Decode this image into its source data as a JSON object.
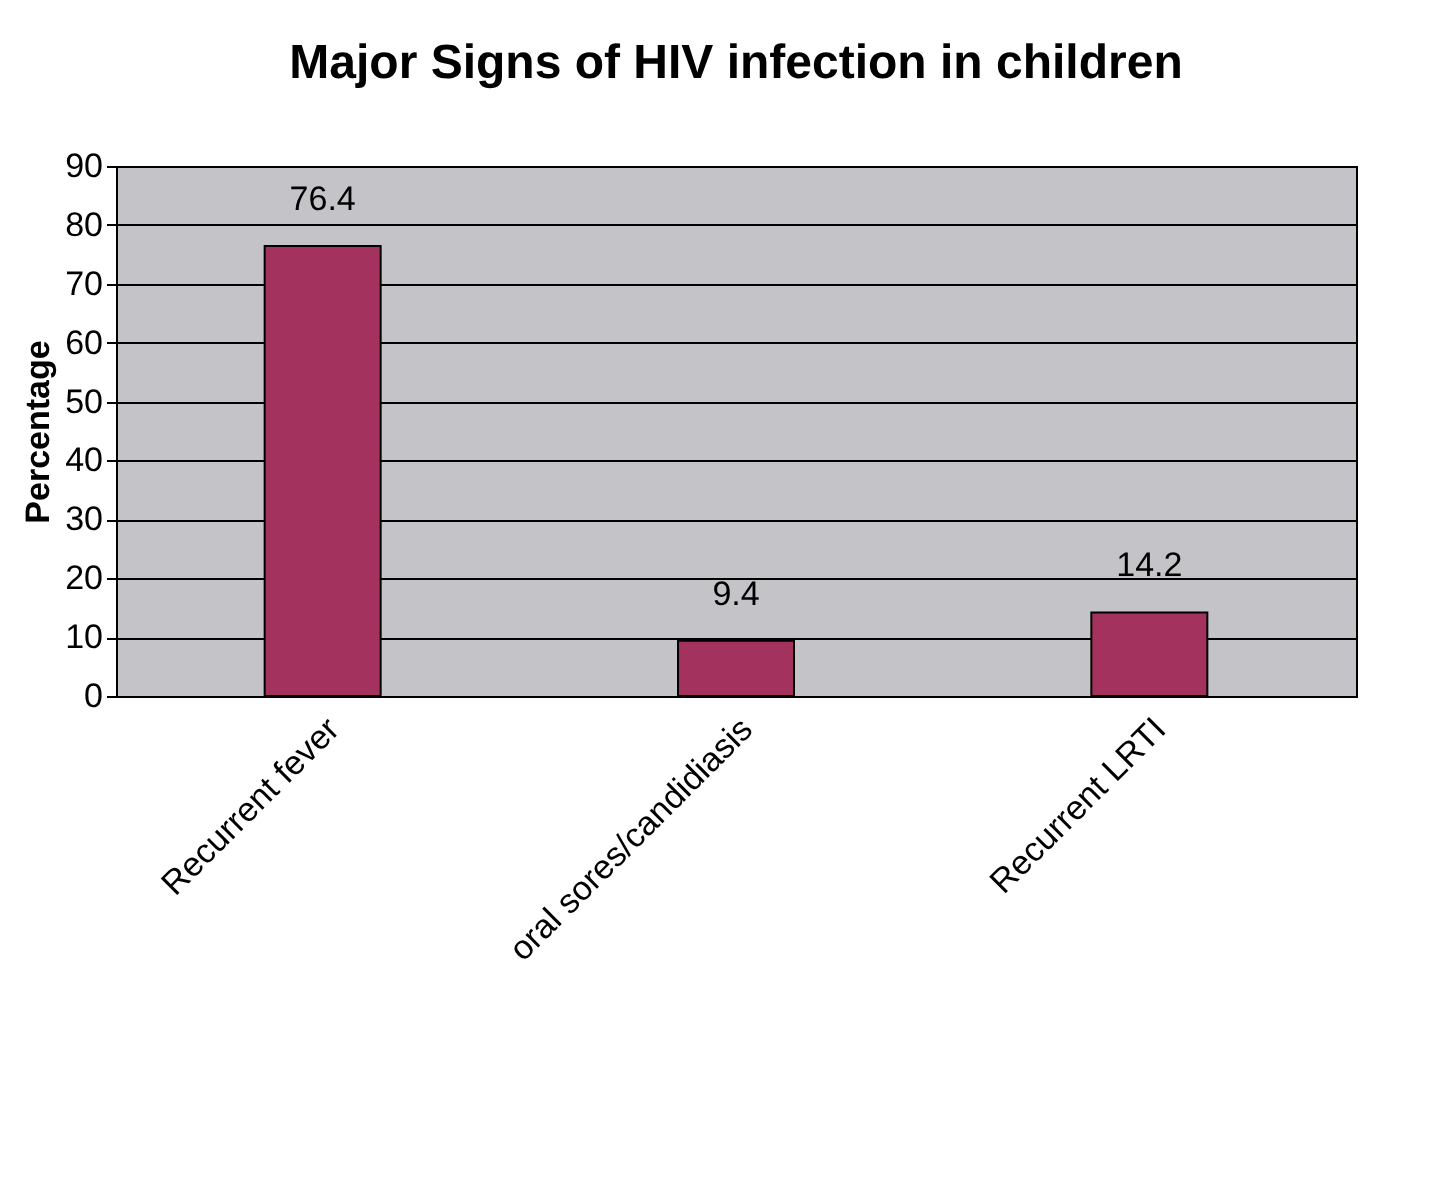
{
  "chart_data": {
    "type": "bar",
    "title": "Major Signs of HIV infection in children",
    "ylabel": "Percentage",
    "categories": [
      "Recurrent fever",
      "oral sores/candidiasis",
      "Recurrent LRTI"
    ],
    "values": [
      76.4,
      9.4,
      14.2
    ],
    "color": "#a3325e",
    "ylim": [
      0,
      90
    ],
    "yticks": [
      0,
      10,
      20,
      30,
      40,
      50,
      60,
      70,
      80,
      90
    ],
    "grid": "y",
    "data_labels": true
  }
}
